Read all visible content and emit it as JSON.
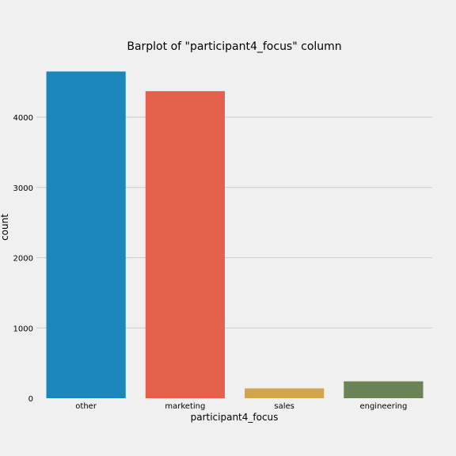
{
  "chart_data": {
    "type": "bar",
    "title": "Barplot of \"participant4_focus\" column",
    "xlabel": "participant4_focus",
    "ylabel": "count",
    "categories": [
      "other",
      "marketing",
      "sales",
      "engineering"
    ],
    "values": [
      4650,
      4370,
      140,
      240
    ],
    "ylim": [
      0,
      4750
    ],
    "yticks": [
      0,
      1000,
      2000,
      3000,
      4000
    ],
    "ytick_labels": [
      "0",
      "1000",
      "2000",
      "3000",
      "4000"
    ],
    "grid": true,
    "colors": [
      "#1a86bb",
      "#e5604a",
      "#d3a54a",
      "#6b8456"
    ]
  }
}
